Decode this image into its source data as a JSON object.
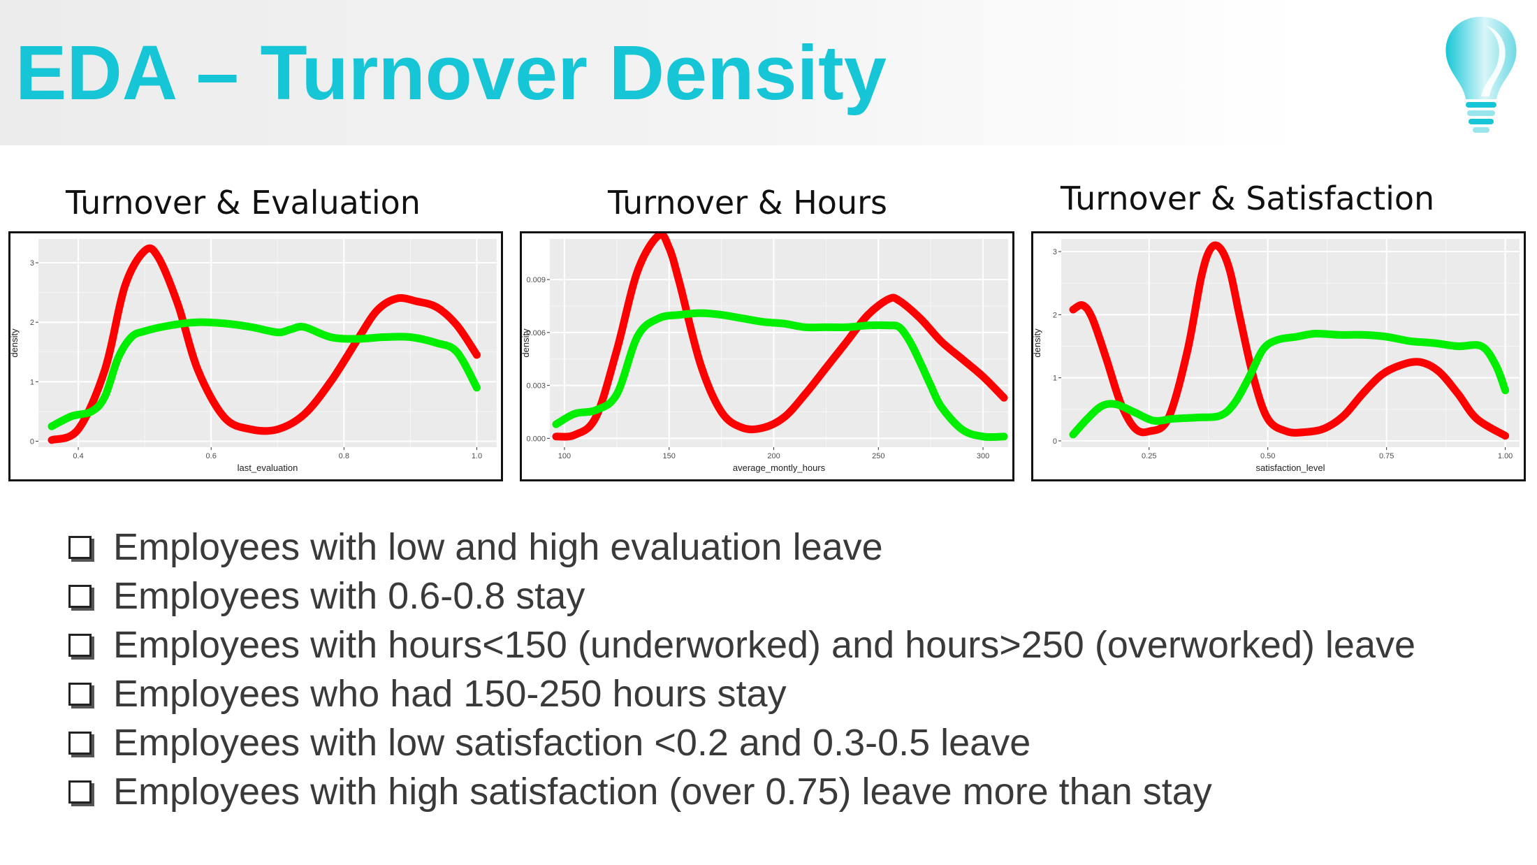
{
  "slide": {
    "title": "EDA – Turnover Density",
    "logo_icon": "lightbulb-icon",
    "accent_color": "#17c6d6"
  },
  "bullets": [
    "Employees with low and high evaluation leave",
    "Employees with 0.6-0.8 stay",
    "Employees with hours<150 (underworked) and hours>250 (overworked) leave",
    "Employees who had 150-250 hours stay",
    "Employees with low satisfaction <0.2 and 0.3-0.5 leave",
    "Employees with high satisfaction (over 0.75) leave more than stay"
  ],
  "chart_data": [
    {
      "type": "line",
      "title": "Turnover & Evaluation",
      "xlabel": "last_evaluation",
      "ylabel": "density",
      "xlim": [
        0.34,
        1.03
      ],
      "ylim": [
        -0.1,
        3.4
      ],
      "xticks": [
        0.4,
        0.6,
        0.8,
        1.0
      ],
      "xtick_labels": [
        "0.4",
        "0.6",
        "0.8",
        "1.0"
      ],
      "yticks": [
        0,
        1,
        2,
        3
      ],
      "ytick_labels": [
        "0",
        "1",
        "2",
        "3"
      ],
      "grid": true,
      "series": [
        {
          "color": "#ff0000",
          "x": [
            0.36,
            0.4,
            0.44,
            0.47,
            0.5,
            0.52,
            0.55,
            0.58,
            0.62,
            0.66,
            0.7,
            0.74,
            0.78,
            0.82,
            0.85,
            0.88,
            0.91,
            0.94,
            0.97,
            1.0
          ],
          "y": [
            0.02,
            0.2,
            1.2,
            2.6,
            3.2,
            3.1,
            2.3,
            1.2,
            0.4,
            0.2,
            0.2,
            0.45,
            1.0,
            1.7,
            2.2,
            2.4,
            2.35,
            2.25,
            1.95,
            1.45
          ]
        },
        {
          "color": "#00ee00",
          "x": [
            0.36,
            0.39,
            0.42,
            0.44,
            0.46,
            0.48,
            0.5,
            0.54,
            0.58,
            0.62,
            0.66,
            0.7,
            0.72,
            0.74,
            0.78,
            0.82,
            0.86,
            0.9,
            0.94,
            0.97,
            1.0
          ],
          "y": [
            0.25,
            0.42,
            0.5,
            0.75,
            1.4,
            1.75,
            1.85,
            1.95,
            2.0,
            1.98,
            1.92,
            1.83,
            1.88,
            1.92,
            1.75,
            1.72,
            1.75,
            1.75,
            1.65,
            1.5,
            0.9
          ]
        }
      ]
    },
    {
      "type": "line",
      "title": "Turnover & Hours",
      "xlabel": "average_montly_hours",
      "ylabel": "density",
      "xlim": [
        93,
        312
      ],
      "ylim": [
        -0.0005,
        0.0113
      ],
      "xticks": [
        100,
        150,
        200,
        250,
        300
      ],
      "xtick_labels": [
        "100",
        "150",
        "200",
        "250",
        "300"
      ],
      "yticks": [
        0,
        0.003,
        0.006,
        0.009
      ],
      "ytick_labels": [
        "0.000",
        "0.003",
        "0.006",
        "0.009"
      ],
      "grid": true,
      "series": [
        {
          "color": "#ff0000",
          "x": [
            96,
            105,
            115,
            125,
            135,
            145,
            150,
            155,
            165,
            175,
            185,
            195,
            205,
            215,
            225,
            235,
            245,
            255,
            260,
            270,
            280,
            290,
            300,
            310
          ],
          "y": [
            0.0001,
            0.0002,
            0.0012,
            0.005,
            0.0095,
            0.0115,
            0.0108,
            0.0088,
            0.0042,
            0.0015,
            0.0006,
            0.0006,
            0.0012,
            0.0025,
            0.004,
            0.0055,
            0.007,
            0.0079,
            0.0078,
            0.0068,
            0.0055,
            0.0045,
            0.0035,
            0.0023
          ]
        },
        {
          "color": "#00ee00",
          "x": [
            96,
            105,
            115,
            125,
            135,
            145,
            155,
            165,
            175,
            185,
            195,
            205,
            215,
            225,
            235,
            245,
            255,
            260,
            265,
            270,
            275,
            280,
            290,
            300,
            310
          ],
          "y": [
            0.0008,
            0.0014,
            0.0016,
            0.0025,
            0.0058,
            0.0068,
            0.007,
            0.0071,
            0.007,
            0.0068,
            0.0066,
            0.0065,
            0.0063,
            0.0063,
            0.0063,
            0.0064,
            0.0064,
            0.0063,
            0.0055,
            0.0043,
            0.003,
            0.0018,
            0.0005,
            0.0001,
            0.0001
          ]
        }
      ]
    },
    {
      "type": "line",
      "title": "Turnover & Satisfaction",
      "xlabel": "satisfaction_level",
      "ylabel": "density",
      "xlim": [
        0.065,
        1.03
      ],
      "ylim": [
        -0.1,
        3.2
      ],
      "xticks": [
        0.25,
        0.5,
        0.75,
        1.0
      ],
      "xtick_labels": [
        "0.25",
        "0.50",
        "0.75",
        "1.00"
      ],
      "yticks": [
        0,
        1,
        2,
        3
      ],
      "ytick_labels": [
        "0",
        "1",
        "2",
        "3"
      ],
      "grid": true,
      "series": [
        {
          "color": "#ff0000",
          "x": [
            0.09,
            0.11,
            0.13,
            0.16,
            0.19,
            0.22,
            0.25,
            0.29,
            0.33,
            0.36,
            0.38,
            0.4,
            0.42,
            0.44,
            0.47,
            0.5,
            0.54,
            0.58,
            0.62,
            0.66,
            0.7,
            0.74,
            0.78,
            0.82,
            0.86,
            0.9,
            0.94,
            1.0
          ],
          "y": [
            2.08,
            2.15,
            1.95,
            1.3,
            0.6,
            0.2,
            0.15,
            0.35,
            1.4,
            2.6,
            3.05,
            3.05,
            2.7,
            2.0,
            1.0,
            0.35,
            0.15,
            0.14,
            0.2,
            0.4,
            0.75,
            1.05,
            1.2,
            1.25,
            1.1,
            0.75,
            0.35,
            0.08
          ]
        },
        {
          "color": "#00ee00",
          "x": [
            0.09,
            0.12,
            0.15,
            0.18,
            0.22,
            0.26,
            0.3,
            0.35,
            0.4,
            0.43,
            0.46,
            0.49,
            0.52,
            0.56,
            0.6,
            0.65,
            0.7,
            0.75,
            0.8,
            0.85,
            0.9,
            0.95,
            0.98,
            1.0
          ],
          "y": [
            0.1,
            0.35,
            0.55,
            0.58,
            0.45,
            0.32,
            0.35,
            0.37,
            0.4,
            0.6,
            1.0,
            1.45,
            1.6,
            1.65,
            1.7,
            1.68,
            1.68,
            1.65,
            1.58,
            1.55,
            1.5,
            1.5,
            1.2,
            0.8
          ]
        }
      ]
    }
  ]
}
